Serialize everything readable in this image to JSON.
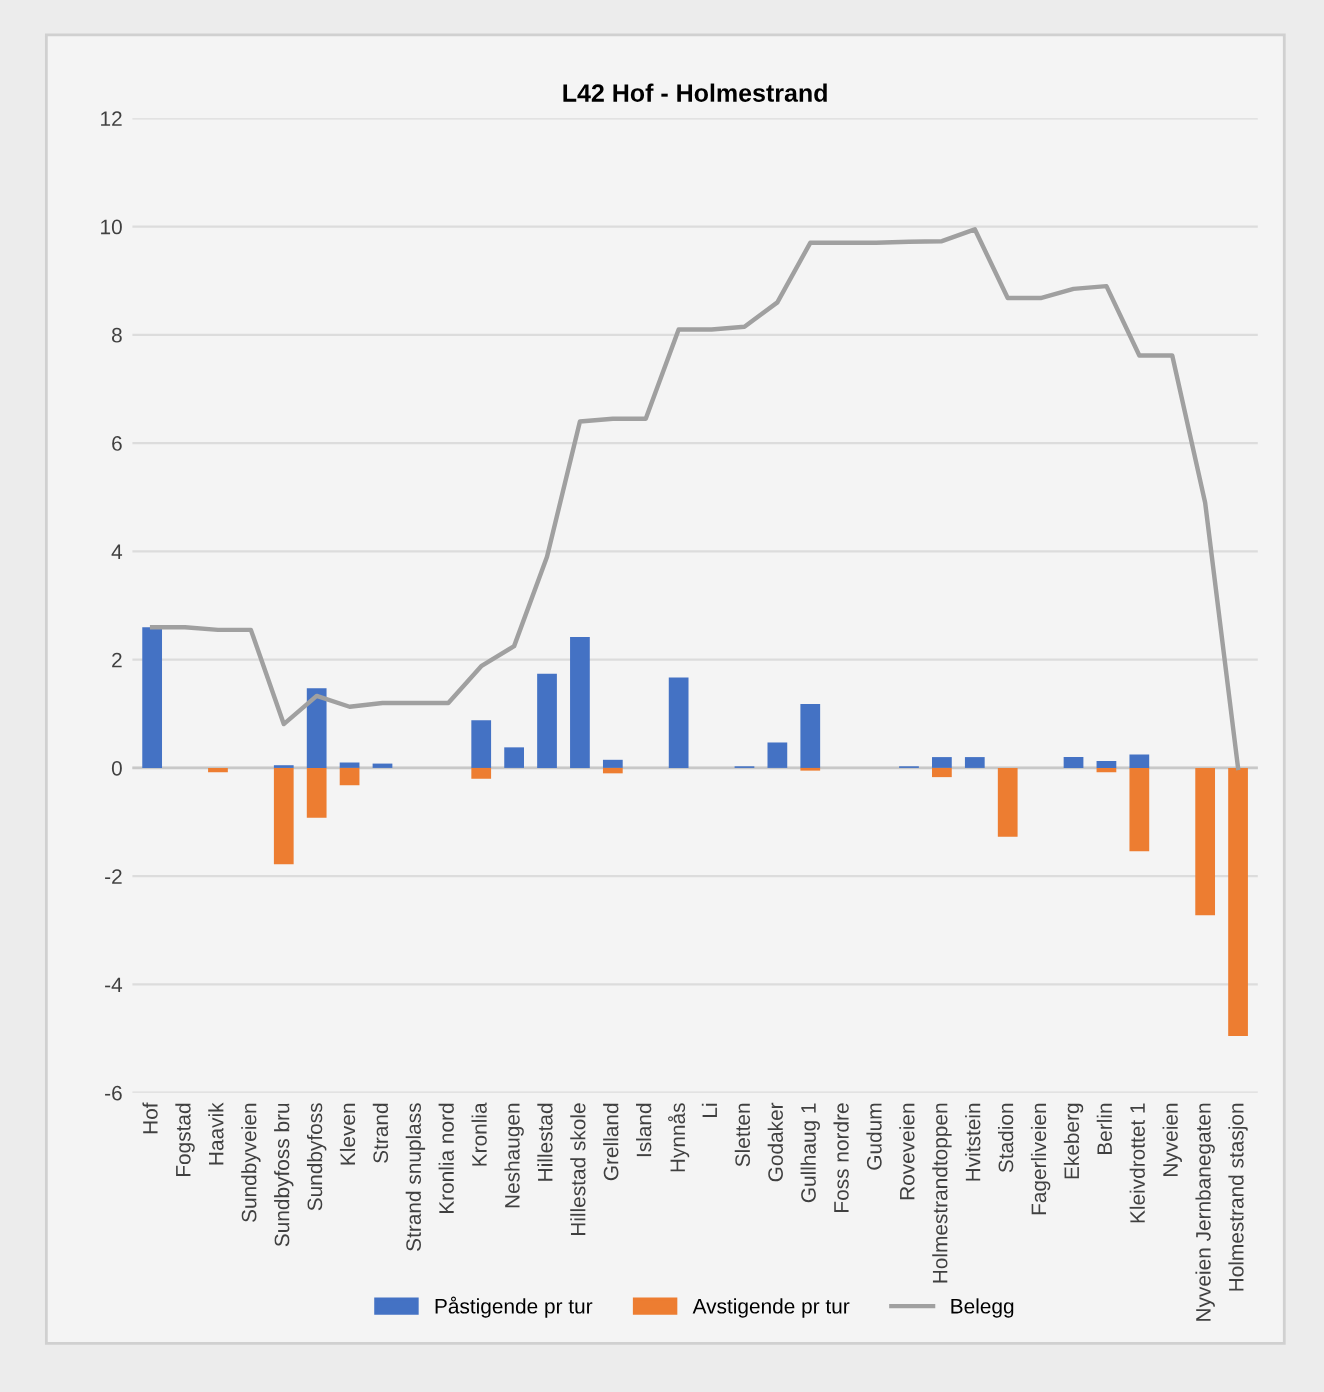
{
  "chart_data": {
    "type": "bar",
    "title": "L42 Hof - Holmestrand",
    "categories": [
      "Hof",
      "Fogstad",
      "Haavik",
      "Sundbyveien",
      "Sundbyfoss bru",
      "Sundbyfoss",
      "Kleven",
      "Strand",
      "Strand snuplass",
      "Kronlia nord",
      "Kronlia",
      "Neshaugen",
      "Hillestad",
      "Hillestad skole",
      "Grelland",
      "Island",
      "Hynnås",
      "Li",
      "Sletten",
      "Godaker",
      "Gullhaug 1",
      "Foss nordre",
      "Gudum",
      "Roveveien",
      "Holmestrandtoppen",
      "Hvitstein",
      "Stadion",
      "Fagerliveien",
      "Ekeberg",
      "Berlin",
      "Kleivdrottet 1",
      "Nyveien",
      "Nyveien Jernbanegaten",
      "Holmestrand stasjon"
    ],
    "stacked": true,
    "series": [
      {
        "name": "Påstigende pr tur",
        "color": "#4472c4",
        "values": [
          2.6,
          0,
          0,
          0,
          0.05,
          1.47,
          0.1,
          0.08,
          0,
          0,
          0.88,
          0.38,
          1.74,
          2.42,
          0.15,
          0,
          1.67,
          0,
          0.03,
          0.47,
          1.18,
          0,
          0,
          0.03,
          0.2,
          0.2,
          0,
          0,
          0.2,
          0.13,
          0.25,
          0,
          0,
          0
        ]
      },
      {
        "name": "Avstigende pr tur",
        "color": "#ed7d31",
        "values": [
          0,
          0,
          -0.08,
          0,
          -1.78,
          -0.92,
          -0.32,
          0,
          0,
          0,
          -0.2,
          0,
          0,
          0,
          -0.1,
          0,
          0,
          0,
          0,
          0,
          -0.05,
          0,
          0,
          0,
          -0.17,
          0,
          -1.27,
          0,
          0,
          -0.08,
          -1.54,
          0,
          -2.72,
          -4.95
        ]
      },
      {
        "name": "Belegg",
        "type": "line",
        "color": "#a0a0a0",
        "values": [
          2.6,
          2.6,
          2.55,
          2.55,
          0.81,
          1.33,
          1.13,
          1.2,
          1.2,
          1.2,
          1.88,
          2.25,
          3.9,
          6.4,
          6.45,
          6.45,
          8.1,
          8.1,
          8.15,
          8.6,
          9.7,
          9.7,
          9.7,
          9.72,
          9.73,
          9.95,
          8.68,
          8.68,
          8.85,
          8.9,
          7.62,
          7.62,
          4.9,
          0
        ]
      }
    ],
    "ylim": [
      -6,
      12
    ],
    "yticks": [
      -6,
      -4,
      -2,
      0,
      2,
      4,
      6,
      8,
      10,
      12
    ],
    "grid": "y",
    "legend": "bottom",
    "marker": "none",
    "line_style": "solid"
  }
}
